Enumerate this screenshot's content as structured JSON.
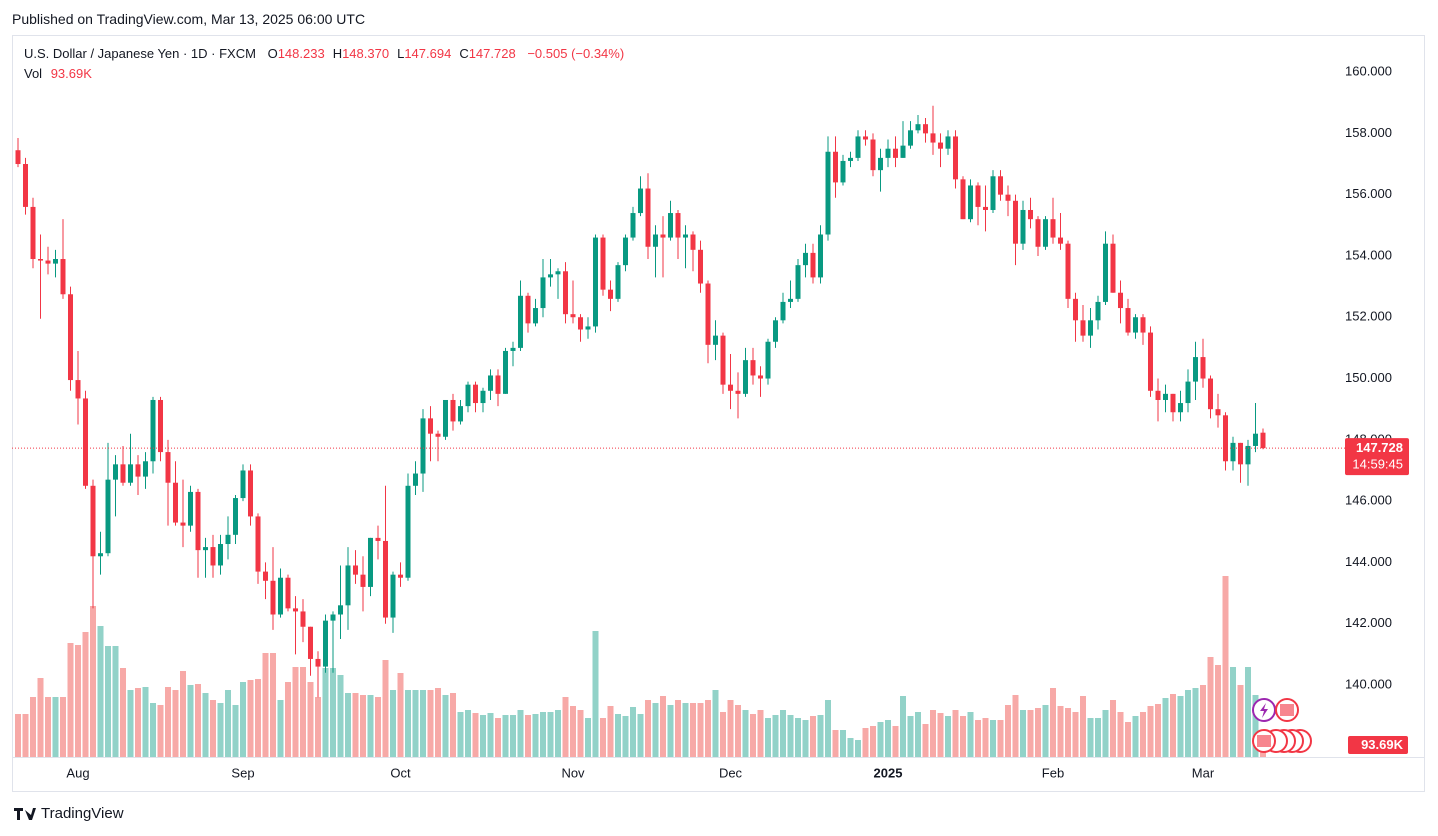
{
  "header": {
    "published": "Published on TradingView.com, Mar 13, 2025 06:00 UTC",
    "symbol": "U.S. Dollar / Japanese Yen · 1D · FXCM",
    "ohlc": [
      {
        "key": "O",
        "value": "148.233"
      },
      {
        "key": "H",
        "value": "148.370"
      },
      {
        "key": "L",
        "value": "147.694"
      },
      {
        "key": "C",
        "value": "147.728"
      }
    ],
    "change": "−0.505 (−0.34%)",
    "vol_label": "Vol",
    "vol_value": "93.69K",
    "countdown": "14:59:45",
    "vol_badge": "93.69K"
  },
  "footer": {
    "logo": "TradingView"
  },
  "chart_data": {
    "type": "candlestick",
    "up_color": "#089981",
    "down_color": "#f23645",
    "volume_up_color": "#92d2c8",
    "volume_down_color": "#f7a9a7",
    "grid": true,
    "ylim": [
      137.65,
      161.21
    ],
    "yticks": [
      {
        "value": 140,
        "label": "140.000"
      },
      {
        "value": 142,
        "label": "142.000"
      },
      {
        "value": 144,
        "label": "144.000"
      },
      {
        "value": 146,
        "label": "146.000"
      },
      {
        "value": 148,
        "label": "148.000"
      },
      {
        "value": 150,
        "label": "150.000"
      },
      {
        "value": 152,
        "label": "152.000"
      },
      {
        "value": 154,
        "label": "154.000"
      },
      {
        "value": 156,
        "label": "156.000"
      },
      {
        "value": 158,
        "label": "158.000"
      },
      {
        "value": 160,
        "label": "160.000"
      }
    ],
    "categories": [
      null,
      null,
      null,
      null,
      null,
      null,
      null,
      null,
      "Aug",
      null,
      null,
      null,
      null,
      null,
      null,
      null,
      null,
      null,
      null,
      null,
      null,
      null,
      null,
      null,
      null,
      null,
      null,
      null,
      null,
      null,
      "Sep",
      null,
      null,
      null,
      null,
      null,
      null,
      null,
      null,
      null,
      null,
      null,
      null,
      null,
      null,
      null,
      null,
      null,
      null,
      null,
      null,
      "Oct",
      null,
      null,
      null,
      null,
      null,
      null,
      null,
      null,
      null,
      null,
      null,
      null,
      null,
      null,
      null,
      null,
      null,
      null,
      null,
      null,
      null,
      null,
      "Nov",
      null,
      null,
      null,
      null,
      null,
      null,
      null,
      null,
      null,
      null,
      null,
      null,
      null,
      null,
      null,
      null,
      null,
      null,
      null,
      null,
      "Dec",
      null,
      null,
      null,
      null,
      null,
      null,
      null,
      null,
      null,
      null,
      null,
      null,
      null,
      null,
      null,
      null,
      null,
      null,
      null,
      null,
      "2025",
      null,
      null,
      null,
      null,
      null,
      null,
      null,
      null,
      null,
      null,
      null,
      null,
      null,
      null,
      null,
      null,
      null,
      null,
      null,
      null,
      null,
      "Feb",
      null,
      null,
      null,
      null,
      null,
      null,
      null,
      null,
      null,
      null,
      null,
      null,
      null,
      null,
      null,
      null,
      null,
      null,
      null,
      "Mar",
      null,
      null,
      null,
      null,
      null,
      null,
      null,
      null
    ],
    "open": [
      157.45,
      157.0,
      155.6,
      153.9,
      153.85,
      153.75,
      153.9,
      152.75,
      149.95,
      149.35,
      146.5,
      144.2,
      144.3,
      146.7,
      147.2,
      146.6,
      147.2,
      146.8,
      147.3,
      149.3,
      147.6,
      146.6,
      145.3,
      145.2,
      146.3,
      144.4,
      144.5,
      143.9,
      144.6,
      144.9,
      146.1,
      147.0,
      145.5,
      143.7,
      143.4,
      142.3,
      143.5,
      142.5,
      142.4,
      141.9,
      140.85,
      140.6,
      142.1,
      142.3,
      142.6,
      143.9,
      143.6,
      143.2,
      144.8,
      144.7,
      142.2,
      143.6,
      143.5,
      146.5,
      146.9,
      148.7,
      148.2,
      148.1,
      149.3,
      148.6,
      149.1,
      149.8,
      149.2,
      149.6,
      150.1,
      149.5,
      150.9,
      151.0,
      152.7,
      151.8,
      152.3,
      153.3,
      153.4,
      153.5,
      152.1,
      152.0,
      151.6,
      151.7,
      154.6,
      152.9,
      152.6,
      153.7,
      154.6,
      155.4,
      156.2,
      154.3,
      154.7,
      154.6,
      155.4,
      154.6,
      154.7,
      154.2,
      153.1,
      151.1,
      151.4,
      149.8,
      149.6,
      149.5,
      150.6,
      150.1,
      150.0,
      151.2,
      151.9,
      152.5,
      152.6,
      153.7,
      154.1,
      153.3,
      154.7,
      157.4,
      156.4,
      157.1,
      157.2,
      157.9,
      157.8,
      156.8,
      157.2,
      157.5,
      157.2,
      157.6,
      158.1,
      158.3,
      158.0,
      157.7,
      157.5,
      157.9,
      156.5,
      155.2,
      156.3,
      155.6,
      155.5,
      156.6,
      156.0,
      155.8,
      154.4,
      155.5,
      155.2,
      154.3,
      155.2,
      154.6,
      154.4,
      152.6,
      151.9,
      151.4,
      151.9,
      152.5,
      154.4,
      152.8,
      152.3,
      151.5,
      152.0,
      151.5,
      149.6,
      149.3,
      149.5,
      148.9,
      149.2,
      149.9,
      150.7,
      150.0,
      149.0,
      148.8,
      147.3,
      147.9,
      147.2,
      147.8,
      148.233
    ],
    "high": [
      157.85,
      157.2,
      155.9,
      154.7,
      154.3,
      154.2,
      155.2,
      153.0,
      150.9,
      149.6,
      146.7,
      145.0,
      147.9,
      147.5,
      147.8,
      148.2,
      147.5,
      147.6,
      149.4,
      149.4,
      148.0,
      147.3,
      146.7,
      146.5,
      146.4,
      144.8,
      144.9,
      144.9,
      145.5,
      146.2,
      147.2,
      147.2,
      145.6,
      144.0,
      144.5,
      143.8,
      143.6,
      142.9,
      142.8,
      141.9,
      141.1,
      142.3,
      142.4,
      143.9,
      144.5,
      144.4,
      144.2,
      144.8,
      145.2,
      146.5,
      143.7,
      144.0,
      146.9,
      147.3,
      149.0,
      149.1,
      148.3,
      149.3,
      149.5,
      149.3,
      149.9,
      149.9,
      149.7,
      150.3,
      150.3,
      151.0,
      151.2,
      153.2,
      152.8,
      152.6,
      153.9,
      153.9,
      153.6,
      153.8,
      153.2,
      152.1,
      152.0,
      154.7,
      154.7,
      153.2,
      153.8,
      154.7,
      155.6,
      156.6,
      156.7,
      155.0,
      155.3,
      155.8,
      155.5,
      155.0,
      154.8,
      154.5,
      153.2,
      151.9,
      151.5,
      150.8,
      150.2,
      151.0,
      151.0,
      150.4,
      151.3,
      152.0,
      152.8,
      153.2,
      153.9,
      154.4,
      154.4,
      155.0,
      157.9,
      157.9,
      157.3,
      157.4,
      158.1,
      158.1,
      158.0,
      157.5,
      157.8,
      157.9,
      158.4,
      158.4,
      158.6,
      158.5,
      158.9,
      158.0,
      158.1,
      158.1,
      156.6,
      156.5,
      156.4,
      156.3,
      156.8,
      156.8,
      156.3,
      156.0,
      155.8,
      155.9,
      155.3,
      155.3,
      155.9,
      155.4,
      154.5,
      152.8,
      152.4,
      152.3,
      152.7,
      154.8,
      154.7,
      153.2,
      152.6,
      152.1,
      152.1,
      151.7,
      150.0,
      149.8,
      149.5,
      149.6,
      150.3,
      151.2,
      151.3,
      150.1,
      149.5,
      148.9,
      148.1,
      147.9,
      148.0,
      149.2,
      148.37
    ],
    "low": [
      156.9,
      155.35,
      153.6,
      151.95,
      153.4,
      153.3,
      152.6,
      149.6,
      148.5,
      146.4,
      142.5,
      143.6,
      144.2,
      145.5,
      146.5,
      146.5,
      146.2,
      146.4,
      146.9,
      147.3,
      145.2,
      145.2,
      144.5,
      145.0,
      143.5,
      143.5,
      143.5,
      143.6,
      144.1,
      144.6,
      146.0,
      145.2,
      143.3,
      142.8,
      141.8,
      142.2,
      142.4,
      141.0,
      141.4,
      140.3,
      139.6,
      140.4,
      140.4,
      141.5,
      141.8,
      143.3,
      142.4,
      142.9,
      144.1,
      142.0,
      141.7,
      143.2,
      143.4,
      146.2,
      146.3,
      147.3,
      147.3,
      148.0,
      148.3,
      148.5,
      148.9,
      148.9,
      148.9,
      149.3,
      149.1,
      149.5,
      150.4,
      150.9,
      151.5,
      151.7,
      152.0,
      153.0,
      152.6,
      151.8,
      151.8,
      151.2,
      151.3,
      151.5,
      152.7,
      152.2,
      152.5,
      153.5,
      154.5,
      155.3,
      153.9,
      153.3,
      153.3,
      154.5,
      153.9,
      153.6,
      153.5,
      152.8,
      150.5,
      150.6,
      149.5,
      149.0,
      148.7,
      149.4,
      149.8,
      149.4,
      149.8,
      151.0,
      151.8,
      152.3,
      152.5,
      153.3,
      153.1,
      153.1,
      154.5,
      155.9,
      156.3,
      156.9,
      157.1,
      157.6,
      156.6,
      156.1,
      156.9,
      156.9,
      157.2,
      157.5,
      158.0,
      157.7,
      157.3,
      156.9,
      157.3,
      156.2,
      155.2,
      155.1,
      155.0,
      154.8,
      155.4,
      155.8,
      155.3,
      153.7,
      154.2,
      154.9,
      154.0,
      154.2,
      154.4,
      154.2,
      152.3,
      151.2,
      151.2,
      151.0,
      151.6,
      152.4,
      152.8,
      151.8,
      151.4,
      151.3,
      151.1,
      149.4,
      148.6,
      148.9,
      148.6,
      148.6,
      148.9,
      149.3,
      149.7,
      148.7,
      148.4,
      147.0,
      147.0,
      146.6,
      146.5,
      147.6,
      147.694
    ],
    "close": [
      157.0,
      155.6,
      153.9,
      153.85,
      153.75,
      153.9,
      152.75,
      149.95,
      149.35,
      146.5,
      144.2,
      144.3,
      146.7,
      147.2,
      146.6,
      147.2,
      146.8,
      147.3,
      149.3,
      147.6,
      146.6,
      145.3,
      145.2,
      146.3,
      144.4,
      144.5,
      143.9,
      144.6,
      144.9,
      146.1,
      147.0,
      145.5,
      143.7,
      143.4,
      142.3,
      143.5,
      142.5,
      142.4,
      141.9,
      140.85,
      140.6,
      142.1,
      142.3,
      142.6,
      143.9,
      143.6,
      143.2,
      144.8,
      144.7,
      142.2,
      143.6,
      143.5,
      146.5,
      146.9,
      148.7,
      148.2,
      148.1,
      149.3,
      148.6,
      149.1,
      149.8,
      149.2,
      149.6,
      150.1,
      149.5,
      150.9,
      151.0,
      152.7,
      151.8,
      152.3,
      153.3,
      153.4,
      153.5,
      152.1,
      152.0,
      151.6,
      151.7,
      154.6,
      152.9,
      152.6,
      153.7,
      154.6,
      155.4,
      156.2,
      154.3,
      154.7,
      154.6,
      155.4,
      154.6,
      154.7,
      154.2,
      153.1,
      151.1,
      151.4,
      149.8,
      149.6,
      149.5,
      150.6,
      150.1,
      150.0,
      151.2,
      151.9,
      152.5,
      152.6,
      153.7,
      154.1,
      153.3,
      154.7,
      157.4,
      156.4,
      157.1,
      157.2,
      157.9,
      157.8,
      156.8,
      157.2,
      157.5,
      157.2,
      157.6,
      158.1,
      158.3,
      158.0,
      157.7,
      157.5,
      157.9,
      156.5,
      155.2,
      156.3,
      155.6,
      155.5,
      156.6,
      156.0,
      155.8,
      154.4,
      155.5,
      155.2,
      154.3,
      155.2,
      154.6,
      154.4,
      152.6,
      151.9,
      151.4,
      151.9,
      152.5,
      154.4,
      152.8,
      152.3,
      151.5,
      152.0,
      151.5,
      149.6,
      149.3,
      149.5,
      148.9,
      149.2,
      149.9,
      150.7,
      150.0,
      149.0,
      148.8,
      147.3,
      147.9,
      147.2,
      147.8,
      148.2,
      147.728
    ],
    "volume": [
      215,
      215,
      300,
      395,
      300,
      300,
      300,
      570,
      560,
      625,
      755,
      655,
      555,
      555,
      445,
      335,
      345,
      350,
      270,
      260,
      350,
      335,
      430,
      360,
      365,
      320,
      285,
      270,
      335,
      260,
      375,
      385,
      390,
      520,
      520,
      285,
      375,
      450,
      450,
      375,
      300,
      445,
      445,
      410,
      320,
      320,
      310,
      310,
      300,
      485,
      335,
      420,
      335,
      335,
      335,
      335,
      345,
      310,
      320,
      225,
      235,
      220,
      210,
      220,
      195,
      210,
      210,
      235,
      210,
      215,
      225,
      225,
      235,
      300,
      255,
      235,
      195,
      630,
      195,
      255,
      215,
      205,
      250,
      215,
      285,
      270,
      305,
      260,
      285,
      270,
      270,
      270,
      285,
      335,
      225,
      285,
      260,
      235,
      215,
      235,
      195,
      210,
      235,
      210,
      195,
      185,
      205,
      210,
      285,
      135,
      135,
      95,
      85,
      145,
      155,
      175,
      185,
      155,
      305,
      205,
      225,
      165,
      235,
      220,
      205,
      235,
      205,
      225,
      185,
      195,
      185,
      185,
      260,
      310,
      235,
      235,
      245,
      260,
      345,
      255,
      245,
      225,
      305,
      195,
      195,
      235,
      285,
      225,
      175,
      205,
      225,
      255,
      265,
      295,
      315,
      305,
      335,
      345,
      360,
      500,
      460,
      905,
      450,
      360,
      450,
      310,
      93.69
    ]
  }
}
